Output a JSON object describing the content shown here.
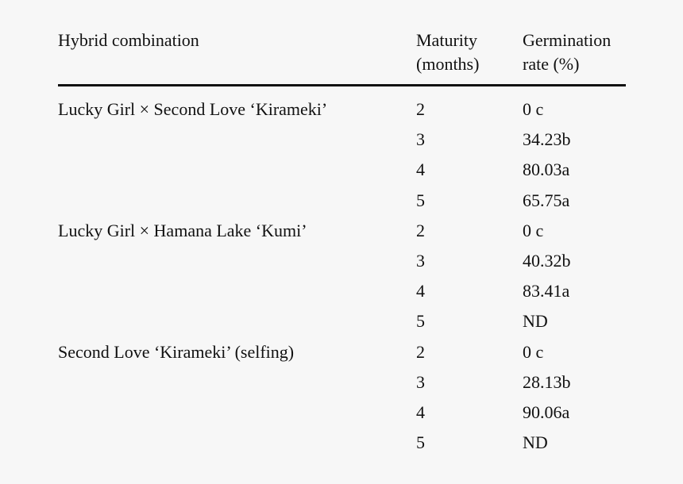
{
  "table": {
    "headers": {
      "hybrid": "Hybrid combination",
      "maturity_line1": "Maturity",
      "maturity_line2": "(months)",
      "germination_line1": "Germination",
      "germination_line2": "rate (%)"
    },
    "rows": [
      {
        "hybrid": "Lucky Girl × Second Love ‘Kirameki’",
        "maturity": "2",
        "germination": "0 c"
      },
      {
        "hybrid": "",
        "maturity": "3",
        "germination": "34.23b"
      },
      {
        "hybrid": "",
        "maturity": "4",
        "germination": "80.03a"
      },
      {
        "hybrid": "",
        "maturity": "5",
        "germination": "65.75a"
      },
      {
        "hybrid": "Lucky Girl × Hamana Lake ‘Kumi’",
        "maturity": "2",
        "germination": "0 c"
      },
      {
        "hybrid": "",
        "maturity": "3",
        "germination": "40.32b"
      },
      {
        "hybrid": "",
        "maturity": "4",
        "germination": "83.41a"
      },
      {
        "hybrid": "",
        "maturity": "5",
        "germination": "ND"
      },
      {
        "hybrid": "Second Love ‘Kirameki’ (selfing)",
        "maturity": "2",
        "germination": "0 c"
      },
      {
        "hybrid": "",
        "maturity": "3",
        "germination": "28.13b"
      },
      {
        "hybrid": "",
        "maturity": "4",
        "germination": "90.06a"
      },
      {
        "hybrid": "",
        "maturity": "5",
        "germination": "ND"
      }
    ]
  }
}
